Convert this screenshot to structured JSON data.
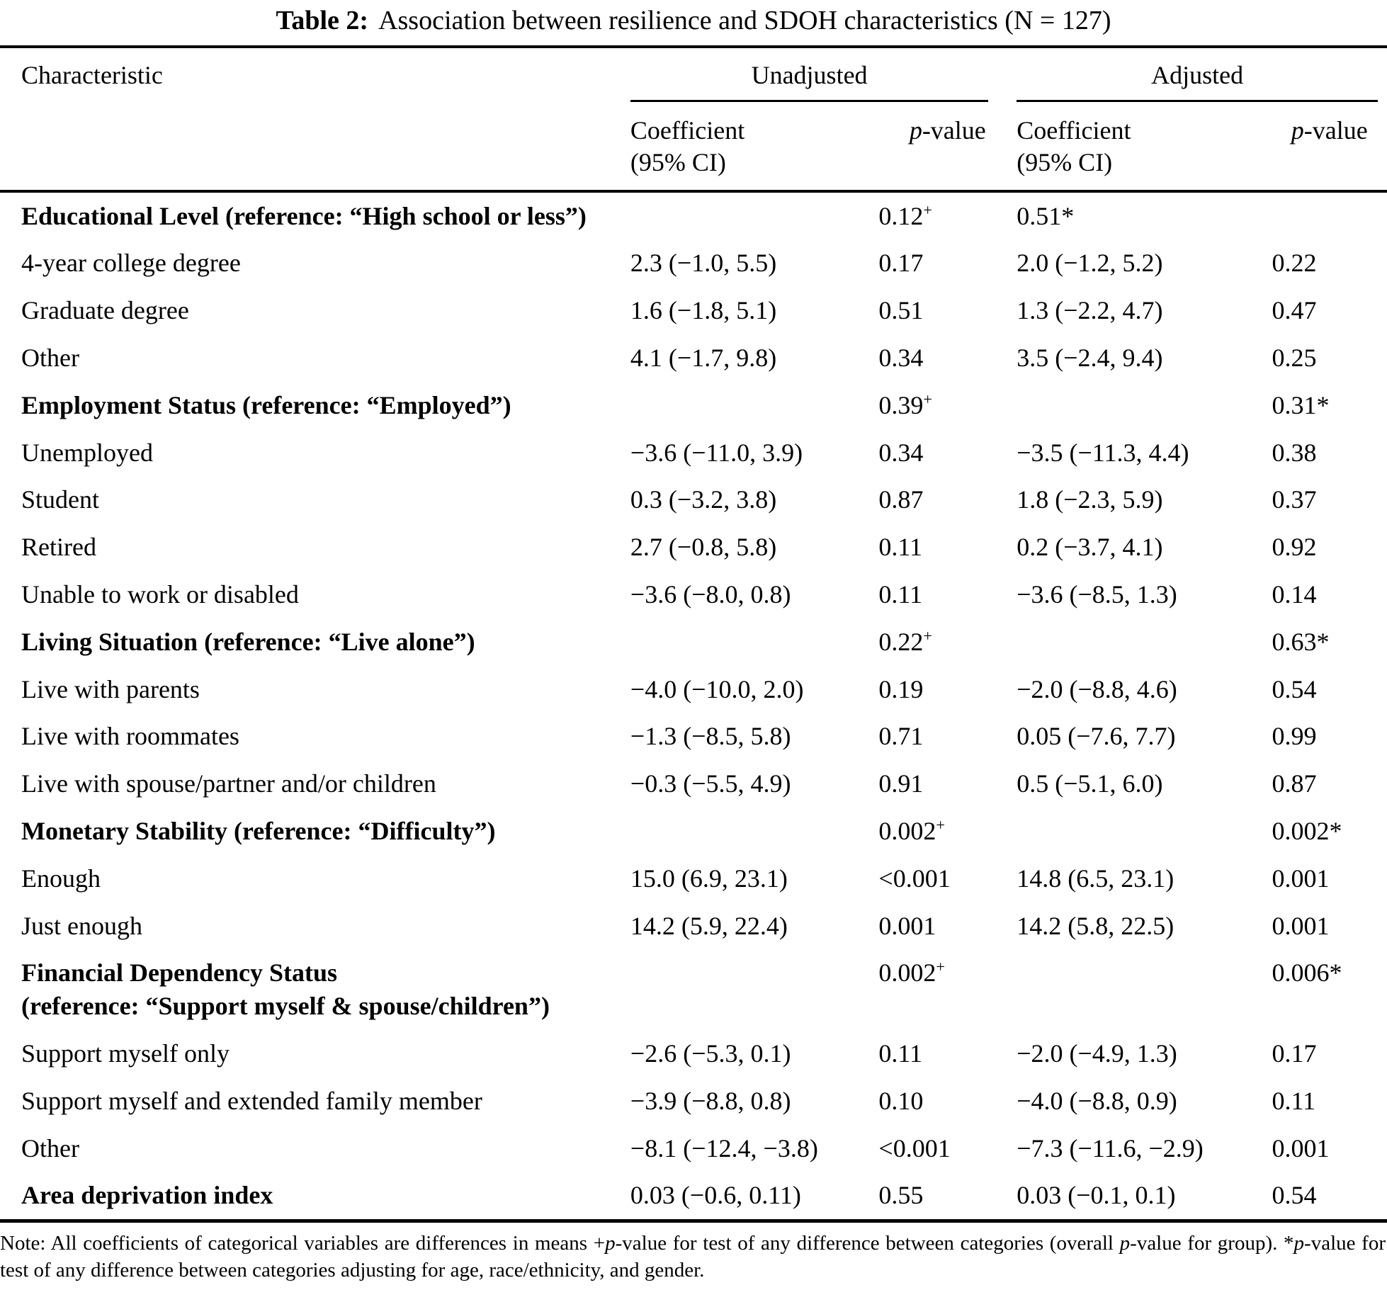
{
  "title": {
    "label": "Table 2:",
    "text": "Association between resilience and SDOH characteristics (N = 127)"
  },
  "header": {
    "characteristic": "Characteristic",
    "unadjusted": "Unadjusted",
    "adjusted": "Adjusted",
    "coefficient_line1": "Coefficient",
    "coefficient_line2": "(95% CI)",
    "p_value": "p-value"
  },
  "rows": [
    {
      "label": "Educational Level (reference: “High school or less”)",
      "bold": true,
      "u_coef": "",
      "u_p": "0.12",
      "u_p_sup": "+",
      "a_coef": "0.51*",
      "a_p": ""
    },
    {
      "label": "4-year college degree",
      "bold": false,
      "u_coef": "2.3 (−1.0, 5.5)",
      "u_p": "0.17",
      "u_p_sup": "",
      "a_coef": "2.0 (−1.2, 5.2)",
      "a_p": "0.22"
    },
    {
      "label": "Graduate degree",
      "bold": false,
      "u_coef": "1.6 (−1.8, 5.1)",
      "u_p": "0.51",
      "u_p_sup": "",
      "a_coef": "1.3 (−2.2, 4.7)",
      "a_p": "0.47"
    },
    {
      "label": "Other",
      "bold": false,
      "u_coef": "4.1 (−1.7, 9.8)",
      "u_p": "0.34",
      "u_p_sup": "",
      "a_coef": "3.5 (−2.4, 9.4)",
      "a_p": "0.25"
    },
    {
      "label": "Employment Status (reference: “Employed”)",
      "bold": true,
      "u_coef": "",
      "u_p": "0.39",
      "u_p_sup": "+",
      "a_coef": "",
      "a_p": "0.31*"
    },
    {
      "label": "Unemployed",
      "bold": false,
      "u_coef": "−3.6 (−11.0, 3.9)",
      "u_p": "0.34",
      "u_p_sup": "",
      "a_coef": "−3.5 (−11.3, 4.4)",
      "a_p": "0.38"
    },
    {
      "label": "Student",
      "bold": false,
      "u_coef": "0.3 (−3.2, 3.8)",
      "u_p": "0.87",
      "u_p_sup": "",
      "a_coef": "1.8 (−2.3, 5.9)",
      "a_p": "0.37"
    },
    {
      "label": "Retired",
      "bold": false,
      "u_coef": "2.7 (−0.8, 5.8)",
      "u_p": "0.11",
      "u_p_sup": "",
      "a_coef": "0.2 (−3.7, 4.1)",
      "a_p": "0.92"
    },
    {
      "label": "Unable to work or disabled",
      "bold": false,
      "u_coef": "−3.6 (−8.0, 0.8)",
      "u_p": "0.11",
      "u_p_sup": "",
      "a_coef": "−3.6 (−8.5, 1.3)",
      "a_p": "0.14"
    },
    {
      "label": "Living Situation (reference: “Live alone”)",
      "bold": true,
      "u_coef": "",
      "u_p": "0.22",
      "u_p_sup": "+",
      "a_coef": "",
      "a_p": "0.63*"
    },
    {
      "label": "Live with parents",
      "bold": false,
      "u_coef": "−4.0 (−10.0, 2.0)",
      "u_p": "0.19",
      "u_p_sup": "",
      "a_coef": "−2.0 (−8.8, 4.6)",
      "a_p": "0.54"
    },
    {
      "label": "Live with roommates",
      "bold": false,
      "u_coef": "−1.3 (−8.5, 5.8)",
      "u_p": "0.71",
      "u_p_sup": "",
      "a_coef": "0.05 (−7.6, 7.7)",
      "a_p": "0.99"
    },
    {
      "label": "Live with spouse/partner and/or children",
      "bold": false,
      "u_coef": "−0.3 (−5.5, 4.9)",
      "u_p": "0.91",
      "u_p_sup": "",
      "a_coef": "0.5 (−5.1, 6.0)",
      "a_p": "0.87"
    },
    {
      "label": "Monetary Stability (reference: “Difficulty”)",
      "bold": true,
      "u_coef": "",
      "u_p": "0.002",
      "u_p_sup": "+",
      "a_coef": "",
      "a_p": "0.002*"
    },
    {
      "label": "Enough",
      "bold": false,
      "u_coef": "15.0 (6.9, 23.1)",
      "u_p": "<0.001",
      "u_p_sup": "",
      "a_coef": "14.8 (6.5, 23.1)",
      "a_p": "0.001"
    },
    {
      "label": "Just enough",
      "bold": false,
      "u_coef": "14.2 (5.9, 22.4)",
      "u_p": "0.001",
      "u_p_sup": "",
      "a_coef": "14.2 (5.8, 22.5)",
      "a_p": "0.001"
    },
    {
      "label": "Financial Dependency Status",
      "label2": "(reference: “Support myself & spouse/children”)",
      "bold": true,
      "u_coef": "",
      "u_p": "0.002",
      "u_p_sup": "+",
      "a_coef": "",
      "a_p": "0.006*"
    },
    {
      "label": "Support myself only",
      "bold": false,
      "u_coef": "−2.6 (−5.3, 0.1)",
      "u_p": "0.11",
      "u_p_sup": "",
      "a_coef": "−2.0 (−4.9, 1.3)",
      "a_p": "0.17"
    },
    {
      "label": "Support myself and extended family member",
      "bold": false,
      "u_coef": "−3.9 (−8.8, 0.8)",
      "u_p": "0.10",
      "u_p_sup": "",
      "a_coef": "−4.0 (−8.8, 0.9)",
      "a_p": "0.11"
    },
    {
      "label": "Other",
      "bold": false,
      "u_coef": "−8.1 (−12.4, −3.8)",
      "u_p": "<0.001",
      "u_p_sup": "",
      "a_coef": "−7.3 (−11.6, −2.9)",
      "a_p": "0.001"
    },
    {
      "label": "Area deprivation index",
      "bold": true,
      "u_coef": "0.03 (−0.6, 0.11)",
      "u_p": "0.55",
      "u_p_sup": "",
      "a_coef": "0.03 (−0.1, 0.1)",
      "a_p": "0.54"
    }
  ],
  "note": "Note: All coefficients of categorical variables are differences in means +p-value for test of any difference between categories (overall p-value for group). *p-value for test of any difference between categories adjusting for age, race/ethnicity, and gender."
}
